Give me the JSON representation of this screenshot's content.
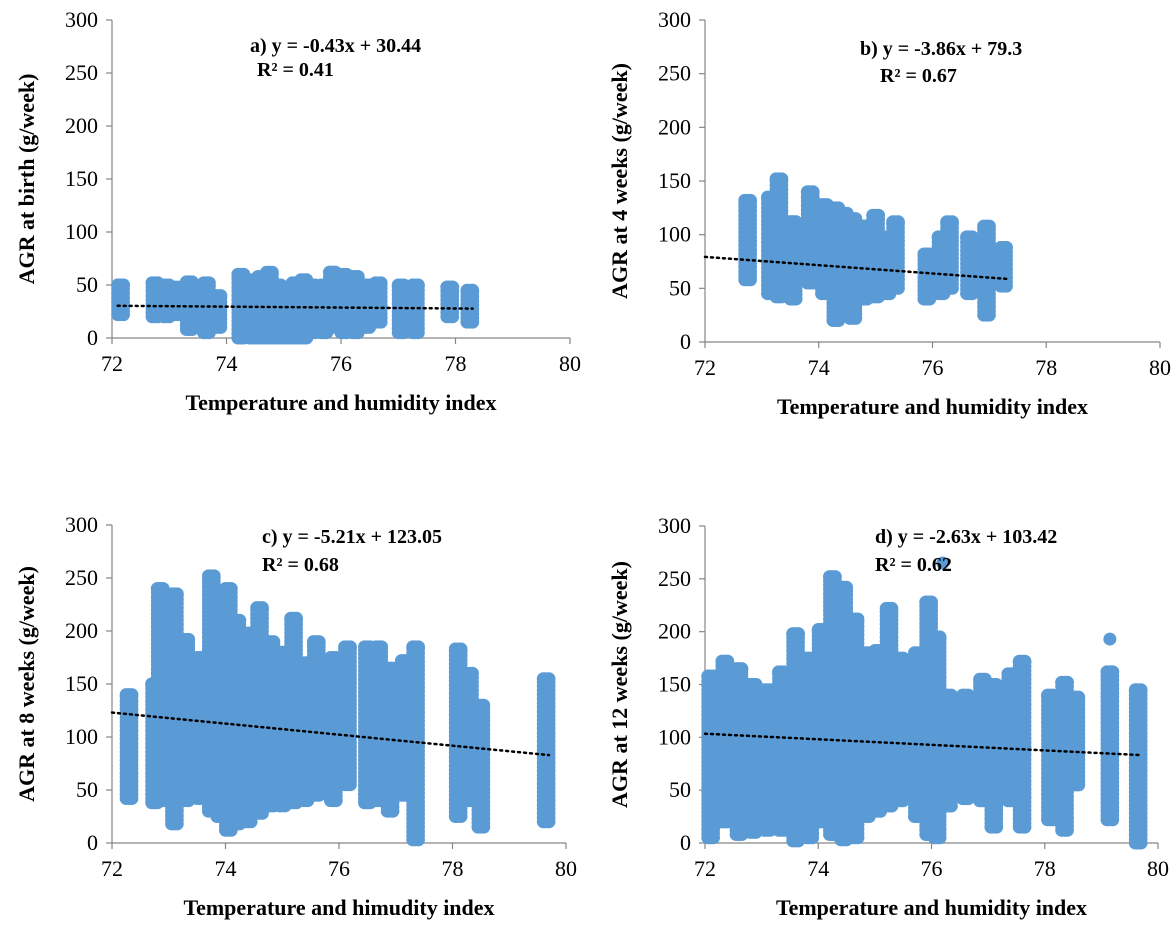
{
  "chart_data": [
    {
      "type": "scatter",
      "panel": "a",
      "xlabel": "Temperature and humidity index",
      "ylabel": "AGR at birth (g/week)",
      "xlim": [
        72,
        80
      ],
      "ylim": [
        0,
        300
      ],
      "xticks": [
        72,
        74,
        76,
        78,
        80
      ],
      "yticks": [
        0,
        50,
        100,
        150,
        200,
        250,
        300
      ],
      "equation": "a) y = -0.43x + 30.44",
      "r2": "R² = 0.41",
      "trendline": {
        "slope": -0.43,
        "intercept": 30.44,
        "x_range": [
          72.1,
          78.3
        ]
      },
      "marker_color": "#5b9bd5",
      "clusters": [
        {
          "x": 72.15,
          "ymin": 22,
          "ymax": 50
        },
        {
          "x": 72.75,
          "ymin": 20,
          "ymax": 52
        },
        {
          "x": 72.95,
          "ymin": 20,
          "ymax": 50
        },
        {
          "x": 73.15,
          "ymin": 22,
          "ymax": 48
        },
        {
          "x": 73.35,
          "ymin": 8,
          "ymax": 53
        },
        {
          "x": 73.65,
          "ymin": 5,
          "ymax": 52
        },
        {
          "x": 73.85,
          "ymin": 10,
          "ymax": 40
        },
        {
          "x": 74.25,
          "ymin": 0,
          "ymax": 60
        },
        {
          "x": 74.45,
          "ymin": 0,
          "ymax": 55
        },
        {
          "x": 74.6,
          "ymin": 0,
          "ymax": 58
        },
        {
          "x": 74.75,
          "ymin": 0,
          "ymax": 62
        },
        {
          "x": 74.9,
          "ymin": 0,
          "ymax": 50
        },
        {
          "x": 75.05,
          "ymin": 0,
          "ymax": 48
        },
        {
          "x": 75.2,
          "ymin": 0,
          "ymax": 52
        },
        {
          "x": 75.35,
          "ymin": 0,
          "ymax": 55
        },
        {
          "x": 75.5,
          "ymin": 5,
          "ymax": 50
        },
        {
          "x": 75.7,
          "ymin": 5,
          "ymax": 50
        },
        {
          "x": 75.85,
          "ymin": 10,
          "ymax": 62
        },
        {
          "x": 76.05,
          "ymin": 5,
          "ymax": 60
        },
        {
          "x": 76.25,
          "ymin": 5,
          "ymax": 58
        },
        {
          "x": 76.45,
          "ymin": 10,
          "ymax": 50
        },
        {
          "x": 76.65,
          "ymin": 15,
          "ymax": 52
        },
        {
          "x": 77.05,
          "ymin": 5,
          "ymax": 50
        },
        {
          "x": 77.3,
          "ymin": 5,
          "ymax": 50
        },
        {
          "x": 77.9,
          "ymin": 20,
          "ymax": 48
        },
        {
          "x": 78.25,
          "ymin": 15,
          "ymax": 45
        }
      ]
    },
    {
      "type": "scatter",
      "panel": "b",
      "xlabel": "Temperature and humidity index",
      "ylabel": "AGR at 4 weeks (g/week)",
      "xlim": [
        72,
        80
      ],
      "ylim": [
        0,
        300
      ],
      "xticks": [
        72,
        74,
        76,
        78,
        80
      ],
      "yticks": [
        0,
        50,
        100,
        150,
        200,
        250,
        300
      ],
      "equation": "b) y = -3.86x + 79.3",
      "r2": "R² = 0.67",
      "trendline": {
        "slope": -3.86,
        "intercept": 79.3,
        "x_range": [
          72.0,
          77.3
        ]
      },
      "marker_color": "#5b9bd5",
      "clusters": [
        {
          "x": 72.75,
          "ymin": 58,
          "ymax": 132
        },
        {
          "x": 73.15,
          "ymin": 45,
          "ymax": 135
        },
        {
          "x": 73.3,
          "ymin": 42,
          "ymax": 152
        },
        {
          "x": 73.55,
          "ymin": 40,
          "ymax": 112
        },
        {
          "x": 73.85,
          "ymin": 55,
          "ymax": 140
        },
        {
          "x": 74.1,
          "ymin": 45,
          "ymax": 128
        },
        {
          "x": 74.3,
          "ymin": 20,
          "ymax": 125
        },
        {
          "x": 74.45,
          "ymin": 30,
          "ymax": 120
        },
        {
          "x": 74.6,
          "ymin": 22,
          "ymax": 115
        },
        {
          "x": 74.8,
          "ymin": 40,
          "ymax": 108
        },
        {
          "x": 75.0,
          "ymin": 42,
          "ymax": 118
        },
        {
          "x": 75.2,
          "ymin": 45,
          "ymax": 98
        },
        {
          "x": 75.35,
          "ymin": 50,
          "ymax": 112
        },
        {
          "x": 75.9,
          "ymin": 40,
          "ymax": 82
        },
        {
          "x": 76.15,
          "ymin": 45,
          "ymax": 98
        },
        {
          "x": 76.3,
          "ymin": 50,
          "ymax": 112
        },
        {
          "x": 76.65,
          "ymin": 45,
          "ymax": 98
        },
        {
          "x": 76.95,
          "ymin": 25,
          "ymax": 108
        },
        {
          "x": 77.25,
          "ymin": 52,
          "ymax": 88
        }
      ]
    },
    {
      "type": "scatter",
      "panel": "c",
      "xlabel": "Temperature and himudity index",
      "ylabel": "AGR at 8 weeks (g/week)",
      "xlim": [
        72,
        80
      ],
      "ylim": [
        0,
        300
      ],
      "xticks": [
        72,
        74,
        76,
        78,
        80
      ],
      "yticks": [
        0,
        50,
        100,
        150,
        200,
        250,
        300
      ],
      "equation": "c) y = -5.21x + 123.05",
      "r2": "R² = 0.68",
      "trendline": {
        "slope": -5.21,
        "intercept": 123.05,
        "x_range": [
          72.0,
          79.7
        ]
      },
      "marker_color": "#5b9bd5",
      "clusters": [
        {
          "x": 72.3,
          "ymin": 42,
          "ymax": 140
        },
        {
          "x": 72.75,
          "ymin": 38,
          "ymax": 150
        },
        {
          "x": 72.85,
          "ymin": 40,
          "ymax": 240
        },
        {
          "x": 73.1,
          "ymin": 18,
          "ymax": 235
        },
        {
          "x": 73.3,
          "ymin": 40,
          "ymax": 192
        },
        {
          "x": 73.55,
          "ymin": 42,
          "ymax": 175
        },
        {
          "x": 73.75,
          "ymin": 30,
          "ymax": 252
        },
        {
          "x": 73.9,
          "ymin": 25,
          "ymax": 228
        },
        {
          "x": 74.05,
          "ymin": 12,
          "ymax": 240
        },
        {
          "x": 74.2,
          "ymin": 18,
          "ymax": 210
        },
        {
          "x": 74.4,
          "ymin": 20,
          "ymax": 198
        },
        {
          "x": 74.6,
          "ymin": 28,
          "ymax": 222
        },
        {
          "x": 74.8,
          "ymin": 35,
          "ymax": 190
        },
        {
          "x": 75.0,
          "ymin": 35,
          "ymax": 180
        },
        {
          "x": 75.2,
          "ymin": 38,
          "ymax": 212
        },
        {
          "x": 75.4,
          "ymin": 40,
          "ymax": 170
        },
        {
          "x": 75.6,
          "ymin": 45,
          "ymax": 190
        },
        {
          "x": 75.9,
          "ymin": 40,
          "ymax": 175
        },
        {
          "x": 76.15,
          "ymin": 55,
          "ymax": 185
        },
        {
          "x": 76.5,
          "ymin": 38,
          "ymax": 185
        },
        {
          "x": 76.7,
          "ymin": 40,
          "ymax": 185
        },
        {
          "x": 76.9,
          "ymin": 30,
          "ymax": 165
        },
        {
          "x": 77.15,
          "ymin": 45,
          "ymax": 172
        },
        {
          "x": 77.35,
          "ymin": 3,
          "ymax": 185
        },
        {
          "x": 78.1,
          "ymin": 25,
          "ymax": 183
        },
        {
          "x": 78.3,
          "ymin": 40,
          "ymax": 160
        },
        {
          "x": 78.5,
          "ymin": 15,
          "ymax": 130
        },
        {
          "x": 79.65,
          "ymin": 20,
          "ymax": 155
        }
      ]
    },
    {
      "type": "scatter",
      "panel": "d",
      "xlabel": "Temperature and humidity index",
      "ylabel": "AGR at 12 weeks (g/week)",
      "xlim": [
        72,
        80
      ],
      "ylim": [
        0,
        300
      ],
      "xticks": [
        72,
        74,
        76,
        78,
        80
      ],
      "yticks": [
        0,
        50,
        100,
        150,
        200,
        250,
        300
      ],
      "equation": "d) y = -2.63x + 103.42",
      "r2": "R² = 0.62",
      "trendline": {
        "slope": -2.63,
        "intercept": 103.42,
        "x_range": [
          72.0,
          79.7
        ]
      },
      "marker_color": "#5b9bd5",
      "clusters": [
        {
          "x": 72.1,
          "ymin": 5,
          "ymax": 158
        },
        {
          "x": 72.35,
          "ymin": 20,
          "ymax": 172
        },
        {
          "x": 72.6,
          "ymin": 8,
          "ymax": 165
        },
        {
          "x": 72.85,
          "ymin": 10,
          "ymax": 150
        },
        {
          "x": 73.1,
          "ymin": 12,
          "ymax": 145
        },
        {
          "x": 73.35,
          "ymin": 12,
          "ymax": 162
        },
        {
          "x": 73.6,
          "ymin": 2,
          "ymax": 198
        },
        {
          "x": 73.85,
          "ymin": 5,
          "ymax": 175
        },
        {
          "x": 74.05,
          "ymin": 20,
          "ymax": 202
        },
        {
          "x": 74.25,
          "ymin": 8,
          "ymax": 252
        },
        {
          "x": 74.45,
          "ymin": 3,
          "ymax": 242
        },
        {
          "x": 74.65,
          "ymin": 5,
          "ymax": 212
        },
        {
          "x": 74.85,
          "ymin": 25,
          "ymax": 180
        },
        {
          "x": 75.05,
          "ymin": 30,
          "ymax": 182
        },
        {
          "x": 75.25,
          "ymin": 35,
          "ymax": 222
        },
        {
          "x": 75.45,
          "ymin": 40,
          "ymax": 175
        },
        {
          "x": 75.75,
          "ymin": 25,
          "ymax": 180
        },
        {
          "x": 75.95,
          "ymin": 8,
          "ymax": 228
        },
        {
          "x": 76.1,
          "ymin": 5,
          "ymax": 195
        },
        {
          "x": 76.3,
          "ymin": 35,
          "ymax": 140
        },
        {
          "x": 76.6,
          "ymin": 42,
          "ymax": 140
        },
        {
          "x": 76.9,
          "ymin": 40,
          "ymax": 155
        },
        {
          "x": 77.1,
          "ymin": 15,
          "ymax": 150
        },
        {
          "x": 77.4,
          "ymin": 40,
          "ymax": 160
        },
        {
          "x": 77.6,
          "ymin": 15,
          "ymax": 172
        },
        {
          "x": 78.1,
          "ymin": 22,
          "ymax": 140
        },
        {
          "x": 78.35,
          "ymin": 12,
          "ymax": 152
        },
        {
          "x": 78.55,
          "ymin": 55,
          "ymax": 138
        },
        {
          "x": 79.15,
          "ymin": 22,
          "ymax": 162
        },
        {
          "x": 79.65,
          "ymin": 0,
          "ymax": 145
        }
      ],
      "outliers": [
        {
          "x": 76.2,
          "y": 265
        },
        {
          "x": 79.15,
          "y": 193
        }
      ]
    }
  ]
}
